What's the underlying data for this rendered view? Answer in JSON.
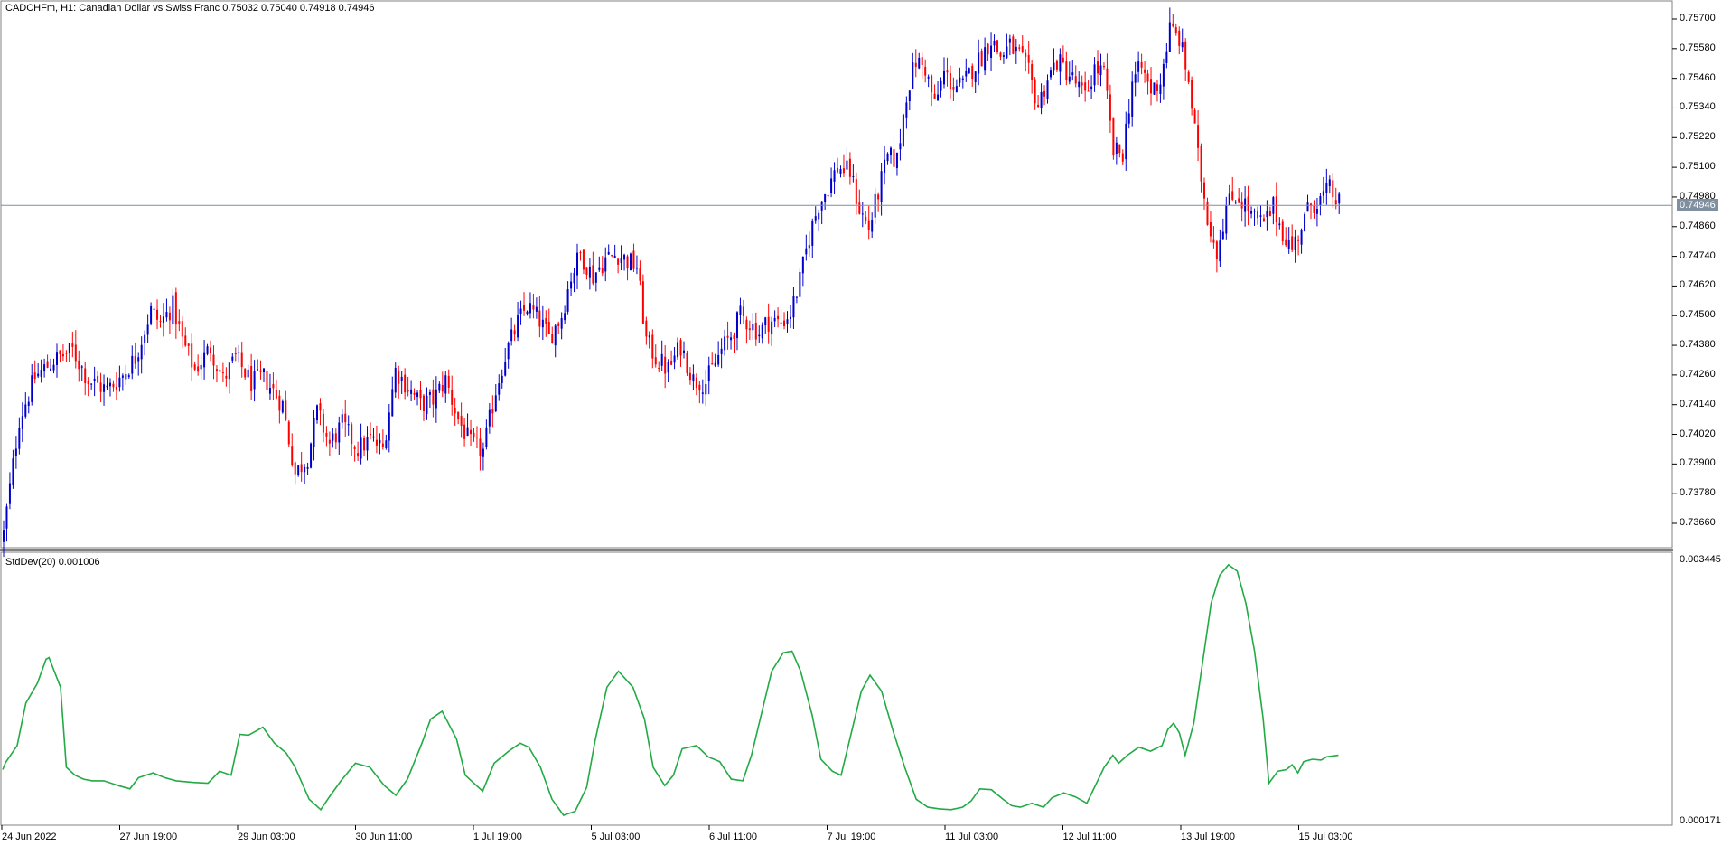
{
  "header": {
    "symbol_info": "CADCHFm, H1:  Canadian Dollar vs Swiss Franc  0.75032 0.75040 0.74918 0.74946"
  },
  "indicator": {
    "label": "StdDev(20) 0.001006",
    "max_label": "0.003445",
    "min_label": "0.000171"
  },
  "current_price_label": "0.74946",
  "colors": {
    "bull": "#0000cc",
    "bear": "#ff0000",
    "stddev": "#22aa44",
    "price_line": "#7f8f9f",
    "frame": "#808080"
  },
  "chart_data": {
    "type": "candlestick",
    "title": "CADCHFm, H1",
    "price_ylim": [
      0.7354,
      0.7576
    ],
    "price_ticks": [
      "0.75700",
      "0.75580",
      "0.75460",
      "0.75340",
      "0.75220",
      "0.75100",
      "0.74980",
      "0.74860",
      "0.74740",
      "0.74620",
      "0.74500",
      "0.74380",
      "0.74260",
      "0.74140",
      "0.74020",
      "0.73900",
      "0.73780",
      "0.73660"
    ],
    "time_ticks": [
      "24 Jun 2022",
      "27 Jun 19:00",
      "29 Jun 03:00",
      "30 Jun 11:00",
      "1 Jul 19:00",
      "5 Jul 03:00",
      "6 Jul 11:00",
      "7 Jul 19:00",
      "11 Jul 03:00",
      "12 Jul 11:00",
      "13 Jul 19:00",
      "15 Jul 03:00"
    ],
    "current_price": 0.74946,
    "close_path": [
      [
        0,
        0.7362
      ],
      [
        5,
        0.7408
      ],
      [
        10,
        0.7425
      ],
      [
        16,
        0.7432
      ],
      [
        22,
        0.7436
      ],
      [
        27,
        0.7424
      ],
      [
        33,
        0.742
      ],
      [
        38,
        0.7426
      ],
      [
        42,
        0.7433
      ],
      [
        47,
        0.7452
      ],
      [
        50,
        0.7447
      ],
      [
        54,
        0.7454
      ],
      [
        57,
        0.744
      ],
      [
        61,
        0.7428
      ],
      [
        66,
        0.7437
      ],
      [
        70,
        0.7424
      ],
      [
        74,
        0.7433
      ],
      [
        79,
        0.7423
      ],
      [
        83,
        0.7425
      ],
      [
        89,
        0.7414
      ],
      [
        93,
        0.7386
      ],
      [
        97,
        0.7393
      ],
      [
        100,
        0.7411
      ],
      [
        104,
        0.7398
      ],
      [
        108,
        0.7406
      ],
      [
        113,
        0.7396
      ],
      [
        117,
        0.74
      ],
      [
        121,
        0.7396
      ],
      [
        125,
        0.7428
      ],
      [
        129,
        0.7421
      ],
      [
        133,
        0.7414
      ],
      [
        137,
        0.7416
      ],
      [
        141,
        0.7424
      ],
      [
        145,
        0.7408
      ],
      [
        149,
        0.7398
      ],
      [
        153,
        0.7395
      ],
      [
        157,
        0.742
      ],
      [
        160,
        0.7434
      ],
      [
        164,
        0.7447
      ],
      [
        167,
        0.7454
      ],
      [
        171,
        0.7448
      ],
      [
        174,
        0.7441
      ],
      [
        178,
        0.745
      ],
      [
        181,
        0.7466
      ],
      [
        184,
        0.7475
      ],
      [
        188,
        0.7466
      ],
      [
        192,
        0.7473
      ],
      [
        196,
        0.7475
      ],
      [
        199,
        0.7472
      ],
      [
        202,
        0.747
      ],
      [
        205,
        0.744
      ],
      [
        208,
        0.7433
      ],
      [
        212,
        0.7428
      ],
      [
        216,
        0.7438
      ],
      [
        220,
        0.7424
      ],
      [
        224,
        0.7423
      ],
      [
        229,
        0.7436
      ],
      [
        232,
        0.7442
      ],
      [
        235,
        0.745
      ],
      [
        238,
        0.7447
      ],
      [
        241,
        0.7443
      ],
      [
        244,
        0.7448
      ],
      [
        248,
        0.7447
      ],
      [
        251,
        0.7451
      ],
      [
        254,
        0.7464
      ],
      [
        257,
        0.7482
      ],
      [
        260,
        0.7495
      ],
      [
        263,
        0.7502
      ],
      [
        266,
        0.751
      ],
      [
        270,
        0.7508
      ],
      [
        273,
        0.7493
      ],
      [
        276,
        0.7485
      ],
      [
        279,
        0.75
      ],
      [
        282,
        0.7514
      ],
      [
        285,
        0.7513
      ],
      [
        288,
        0.754
      ],
      [
        291,
        0.7553
      ],
      [
        294,
        0.755
      ],
      [
        297,
        0.7535
      ],
      [
        300,
        0.7548
      ],
      [
        303,
        0.7543
      ],
      [
        306,
        0.7543
      ],
      [
        309,
        0.755
      ],
      [
        312,
        0.7555
      ],
      [
        315,
        0.7562
      ],
      [
        318,
        0.7555
      ],
      [
        321,
        0.7559
      ],
      [
        324,
        0.7555
      ],
      [
        327,
        0.7548
      ],
      [
        330,
        0.7535
      ],
      [
        333,
        0.7546
      ],
      [
        336,
        0.7553
      ],
      [
        339,
        0.7549
      ],
      [
        342,
        0.7544
      ],
      [
        345,
        0.7538
      ],
      [
        348,
        0.755
      ],
      [
        351,
        0.7548
      ],
      [
        354,
        0.7516
      ],
      [
        357,
        0.7516
      ],
      [
        360,
        0.7545
      ],
      [
        363,
        0.755
      ],
      [
        366,
        0.7541
      ],
      [
        369,
        0.7545
      ],
      [
        372,
        0.7566
      ],
      [
        375,
        0.7562
      ],
      [
        378,
        0.7545
      ],
      [
        381,
        0.7514
      ],
      [
        384,
        0.749
      ],
      [
        387,
        0.7476
      ],
      [
        390,
        0.7494
      ],
      [
        393,
        0.7499
      ],
      [
        396,
        0.7495
      ],
      [
        399,
        0.7489
      ],
      [
        402,
        0.7487
      ],
      [
        405,
        0.7494
      ],
      [
        408,
        0.7484
      ],
      [
        411,
        0.7477
      ],
      [
        414,
        0.7486
      ],
      [
        417,
        0.7495
      ],
      [
        420,
        0.7497
      ],
      [
        423,
        0.7501
      ],
      [
        426,
        0.7495
      ]
    ],
    "stddev": {
      "name": "StdDev(20)",
      "ylim": [
        0.000171,
        0.003445
      ],
      "points": [
        [
          0,
          0.00082
        ],
        [
          1,
          0.00091
        ],
        [
          5,
          0.00112
        ],
        [
          8,
          0.00165
        ],
        [
          12,
          0.0019
        ],
        [
          15,
          0.0022
        ],
        [
          16,
          0.00222
        ],
        [
          20,
          0.00185
        ],
        [
          22,
          0.00085
        ],
        [
          25,
          0.00075
        ],
        [
          28,
          0.0007
        ],
        [
          31,
          0.00068
        ],
        [
          35,
          0.00068
        ],
        [
          40,
          0.00062
        ],
        [
          44,
          0.00058
        ],
        [
          47,
          0.00072
        ],
        [
          52,
          0.00078
        ],
        [
          56,
          0.00072
        ],
        [
          60,
          0.00068
        ],
        [
          66,
          0.00066
        ],
        [
          71,
          0.00065
        ],
        [
          75,
          0.0008
        ],
        [
          79,
          0.00075
        ],
        [
          82,
          0.00126
        ],
        [
          85,
          0.00125
        ],
        [
          90,
          0.00135
        ],
        [
          94,
          0.00115
        ],
        [
          98,
          0.00103
        ],
        [
          101,
          0.00086
        ],
        [
          106,
          0.00045
        ],
        [
          110,
          0.00032
        ],
        [
          113,
          0.00048
        ],
        [
          117,
          0.00068
        ],
        [
          122,
          0.0009
        ],
        [
          127,
          0.00085
        ],
        [
          132,
          0.00062
        ],
        [
          136,
          0.0005
        ],
        [
          140,
          0.0007
        ],
        [
          145,
          0.00115
        ],
        [
          148,
          0.00145
        ],
        [
          152,
          0.00155
        ],
        [
          157,
          0.0012
        ],
        [
          160,
          0.00075
        ],
        [
          163,
          0.00065
        ],
        [
          166,
          0.00055
        ],
        [
          170,
          0.0009
        ],
        [
          175,
          0.00105
        ],
        [
          179,
          0.00115
        ],
        [
          182,
          0.0011
        ],
        [
          186,
          0.00085
        ],
        [
          190,
          0.00045
        ],
        [
          194,
          0.00025
        ],
        [
          198,
          0.0003
        ],
        [
          202,
          0.0006
        ],
        [
          205,
          0.0012
        ],
        [
          209,
          0.00185
        ],
        [
          213,
          0.00205
        ],
        [
          218,
          0.00185
        ],
        [
          222,
          0.00145
        ],
        [
          225,
          0.00085
        ],
        [
          229,
          0.00062
        ],
        [
          232,
          0.00075
        ],
        [
          235,
          0.00108
        ],
        [
          240,
          0.00112
        ],
        [
          244,
          0.00098
        ],
        [
          248,
          0.00092
        ],
        [
          252,
          0.0007
        ],
        [
          256,
          0.00068
        ],
        [
          259,
          0.001
        ],
        [
          263,
          0.0016
        ],
        [
          266,
          0.00205
        ],
        [
          270,
          0.00228
        ],
        [
          273,
          0.0023
        ],
        [
          276,
          0.00205
        ],
        [
          280,
          0.0015
        ],
        [
          283,
          0.00095
        ],
        [
          287,
          0.0008
        ],
        [
          290,
          0.00075
        ],
        [
          293,
          0.0012
        ],
        [
          297,
          0.0018
        ],
        [
          300,
          0.002
        ],
        [
          304,
          0.0018
        ],
        [
          308,
          0.0013
        ],
        [
          312,
          0.00085
        ],
        [
          316,
          0.00045
        ],
        [
          320,
          0.00035
        ],
        [
          324,
          0.00033
        ],
        [
          328,
          0.00032
        ],
        [
          332,
          0.00035
        ],
        [
          335,
          0.00043
        ],
        [
          338,
          0.00058
        ],
        [
          342,
          0.00057
        ],
        [
          346,
          0.00045
        ],
        [
          349,
          0.00037
        ],
        [
          352,
          0.00035
        ],
        [
          356,
          0.0004
        ],
        [
          360,
          0.00035
        ],
        [
          363,
          0.00047
        ],
        [
          367,
          0.00053
        ],
        [
          371,
          0.00048
        ],
        [
          375,
          0.0004
        ],
        [
          377,
          0.00055
        ],
        [
          381,
          0.00085
        ],
        [
          384,
          0.001
        ],
        [
          386,
          0.0009
        ],
        [
          389,
          0.001
        ],
        [
          393,
          0.0011
        ],
        [
          397,
          0.00105
        ],
        [
          401,
          0.00112
        ],
        [
          403,
          0.00132
        ],
        [
          405,
          0.0014
        ],
        [
          407,
          0.00128
        ],
        [
          409,
          0.001
        ],
        [
          412,
          0.0014
        ],
        [
          415,
          0.00215
        ],
        [
          418,
          0.0029
        ],
        [
          421,
          0.00325
        ],
        [
          424,
          0.00338
        ],
        [
          427,
          0.0033
        ],
        [
          430,
          0.0029
        ],
        [
          433,
          0.0023
        ],
        [
          436,
          0.00145
        ],
        [
          438,
          0.00065
        ],
        [
          441,
          0.0008
        ],
        [
          444,
          0.00082
        ],
        [
          446,
          0.00088
        ],
        [
          448,
          0.00078
        ],
        [
          450,
          0.00092
        ],
        [
          453,
          0.00095
        ],
        [
          456,
          0.00094
        ],
        [
          458,
          0.00098
        ],
        [
          462,
          0.001
        ]
      ]
    }
  }
}
